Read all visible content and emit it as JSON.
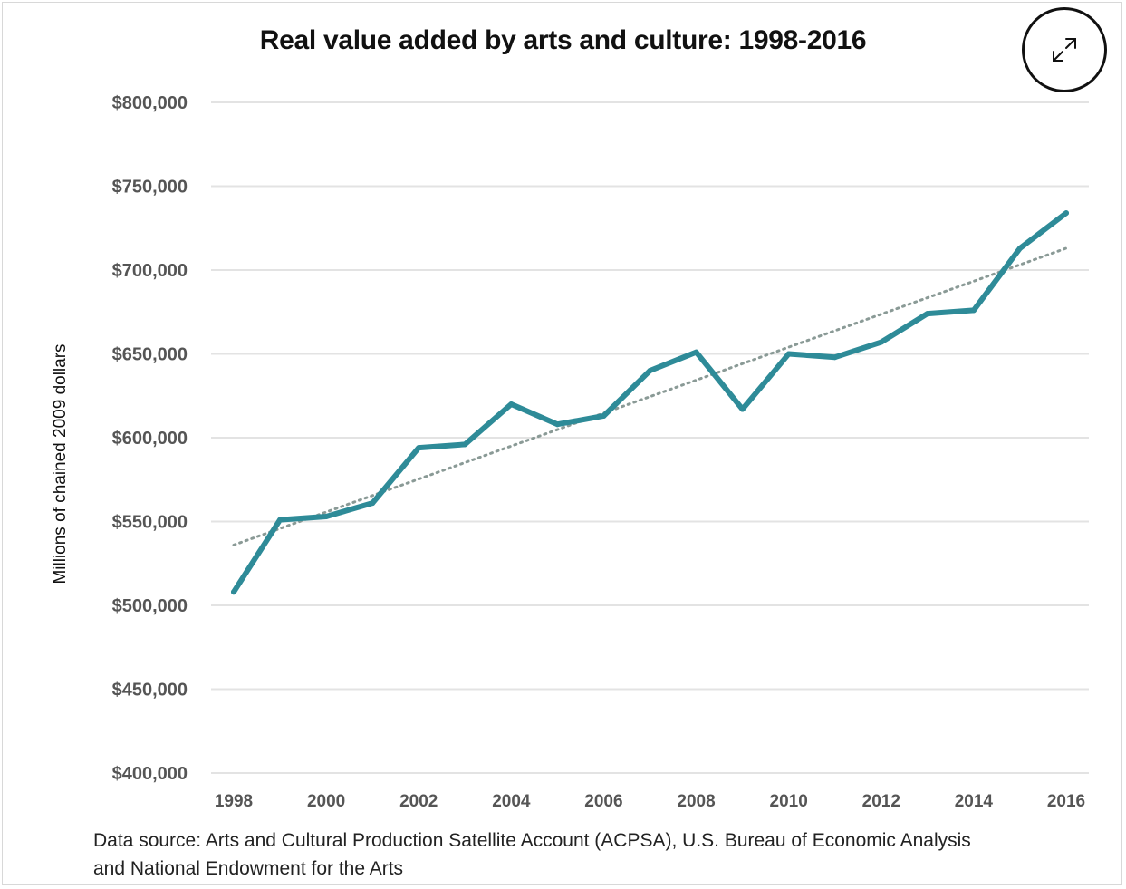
{
  "chart_data": {
    "type": "line",
    "title": "Real value added by arts and culture: 1998-2016",
    "xlabel": "",
    "ylabel": "Millions of chained 2009 dollars",
    "x": [
      1998,
      1999,
      2000,
      2001,
      2002,
      2003,
      2004,
      2005,
      2006,
      2007,
      2008,
      2009,
      2010,
      2011,
      2012,
      2013,
      2014,
      2015,
      2016
    ],
    "series": [
      {
        "values": [
          508000,
          551000,
          553000,
          561000,
          594000,
          596000,
          620000,
          608000,
          613000,
          640000,
          651000,
          617000,
          650000,
          648000,
          657000,
          674000,
          676000,
          713000,
          734000
        ]
      }
    ],
    "trendline": {
      "style": "dotted",
      "start": [
        1998,
        536000
      ],
      "end": [
        2016,
        713000
      ]
    },
    "x_ticks": [
      "1998",
      "2000",
      "2002",
      "2004",
      "2006",
      "2008",
      "2010",
      "2012",
      "2014",
      "2016"
    ],
    "y_ticks": [
      "$400,000",
      "$450,000",
      "$500,000",
      "$550,000",
      "$600,000",
      "$650,000",
      "$700,000",
      "$750,000",
      "$800,000"
    ],
    "ylim": [
      400000,
      800000
    ],
    "xlim": [
      1998,
      2016
    ],
    "grid": "horizontal",
    "legend": "none",
    "colors": {
      "line": "#2e8b98",
      "trend": "#8a9a96",
      "grid": "#e3e3e3"
    }
  },
  "source_note": "Data source: Arts and Cultural Production Satellite Account (ACPSA), U.S. Bureau of Economic Analysis and National Endowment for the Arts",
  "controls": {
    "expand_icon": "expand-arrows-icon"
  }
}
